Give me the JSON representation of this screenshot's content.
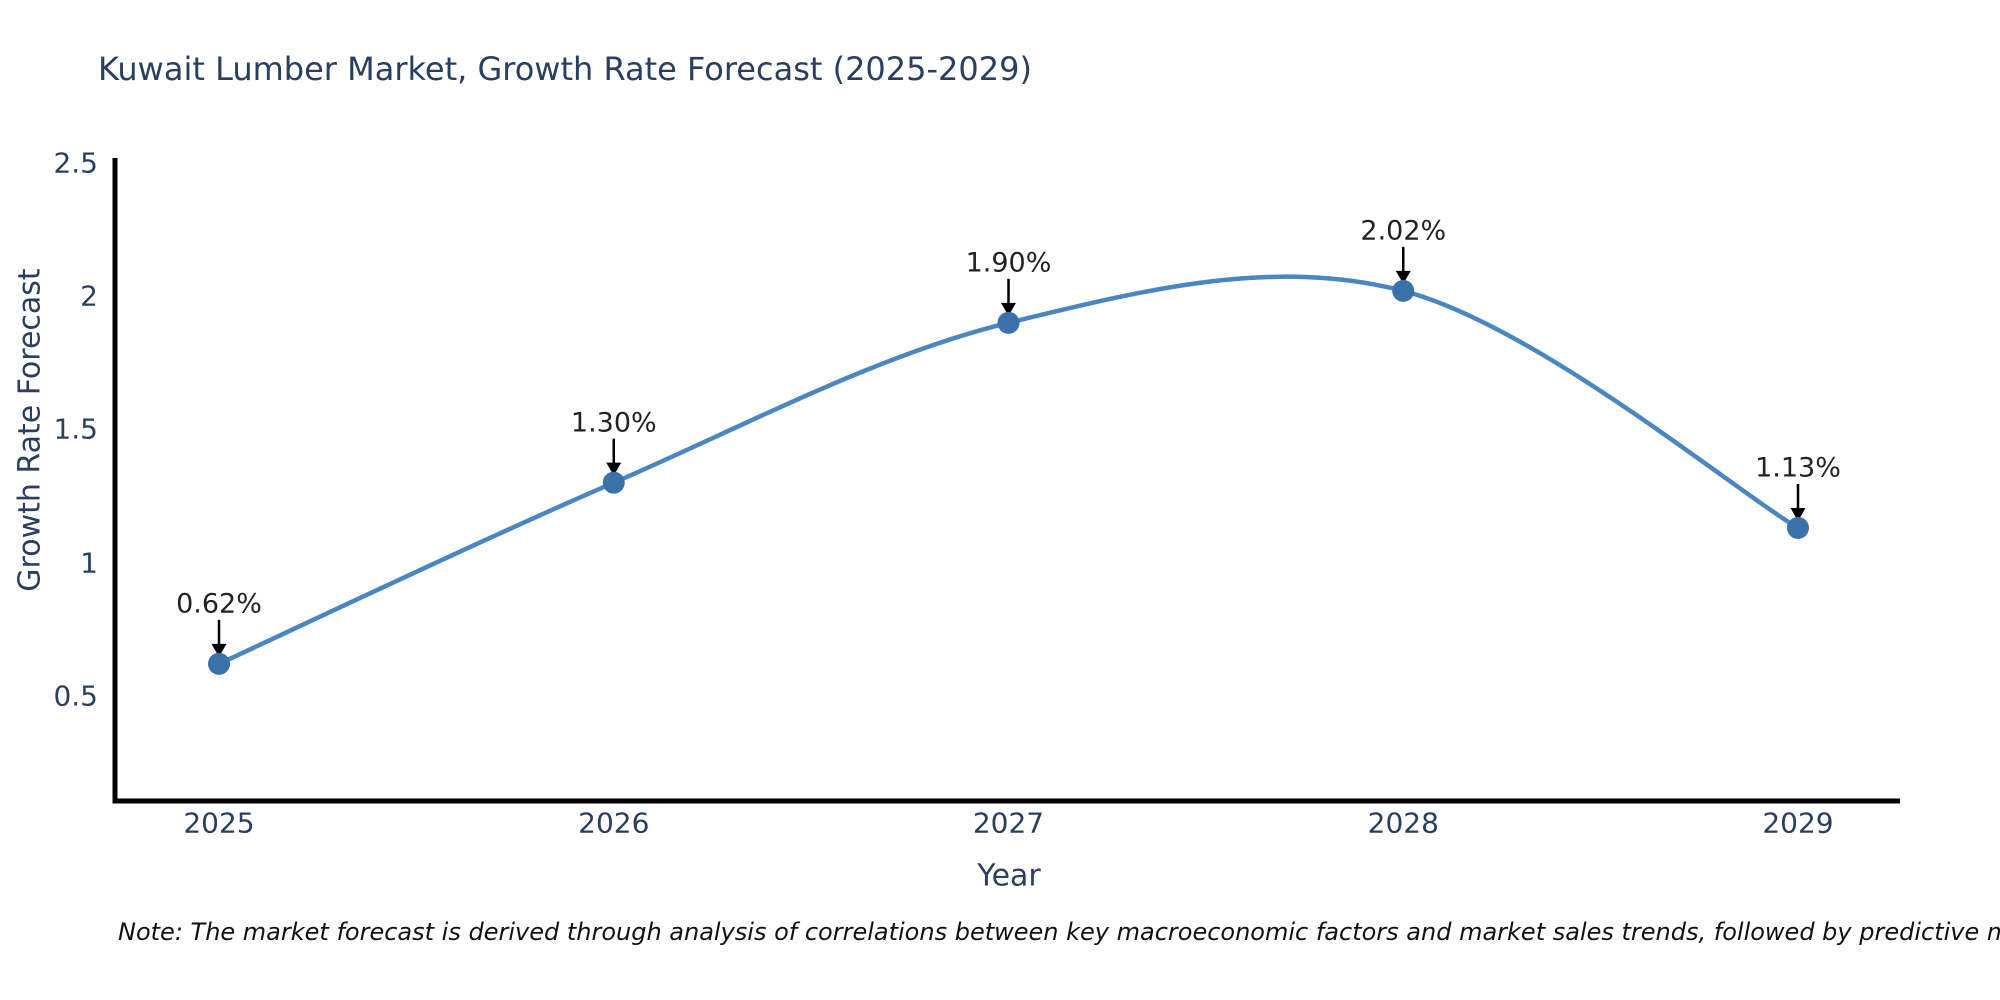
{
  "chart_data": {
    "type": "line",
    "title": "Kuwait Lumber Market, Growth Rate Forecast (2025-2029)",
    "xlabel": "Year",
    "ylabel": "Growth Rate Forecast",
    "x": [
      2025,
      2026,
      2027,
      2028,
      2029
    ],
    "values": [
      0.62,
      1.3,
      1.9,
      2.02,
      1.13
    ],
    "point_labels": [
      "0.62%",
      "1.30%",
      "1.90%",
      "2.02%",
      "1.13%"
    ],
    "xticks": [
      "2025",
      "2026",
      "2027",
      "2028",
      "2029"
    ],
    "yticks": [
      "2.5",
      "2",
      "1.5",
      "1",
      "0.5"
    ],
    "ytick_values": [
      2.5,
      2.0,
      1.5,
      1.0,
      0.5
    ],
    "ylim_top": 2.5,
    "xlim": [
      2025,
      2029
    ],
    "line_shape": "spline",
    "grid": false,
    "legend_position": "none",
    "colors": {
      "line": "#4a86c0",
      "marker": "#3a71a8",
      "axis": "#000000",
      "text": "#2a3f5f",
      "annotation": "#222222",
      "note": "#111111",
      "background": "#ffffff"
    }
  },
  "note": "Note: The market forecast is derived through analysis of correlations between key macroeconomic factors and market sales trends, followed by predictive modeling to project future sales"
}
